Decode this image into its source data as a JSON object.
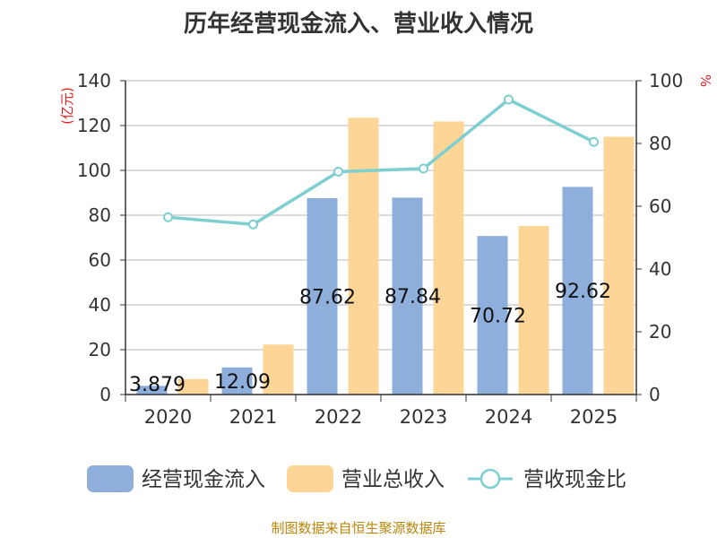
{
  "chart_data": {
    "type": "bar+line",
    "title": "历年经营现金流入、营业收入情况",
    "left_unit": "(亿元)",
    "right_unit": "%",
    "categories": [
      "2020",
      "2021",
      "2022",
      "2023",
      "2024",
      "2025"
    ],
    "left_axis": {
      "ylim": [
        0,
        140
      ],
      "ticks": [
        "0",
        "20",
        "40",
        "60",
        "80",
        "100",
        "120",
        "140"
      ]
    },
    "right_axis": {
      "ylim": [
        0,
        100
      ],
      "ticks": [
        "0",
        "20",
        "40",
        "60",
        "80",
        "100"
      ]
    },
    "series": [
      {
        "name": "经营现金流入",
        "type": "bar",
        "axis": "left",
        "color": "#8eaedc",
        "values": [
          3.879,
          12.09,
          87.62,
          87.84,
          70.72,
          92.62
        ],
        "labels": [
          "3.879",
          "12.09",
          "87.62",
          "87.84",
          "70.72",
          "92.62"
        ]
      },
      {
        "name": "营业总收入",
        "type": "bar",
        "axis": "left",
        "color": "#fdd697",
        "values": [
          6.9,
          22.3,
          123.5,
          121.8,
          75.2,
          115.0
        ]
      },
      {
        "name": "营收现金比",
        "type": "line",
        "axis": "right",
        "color": "#7fcfd0",
        "values": [
          56.5,
          54.2,
          71.0,
          72.0,
          94.0,
          80.5
        ]
      }
    ],
    "legend_position": "bottom",
    "grid": true
  },
  "source_note": "制图数据来自恒生聚源数据库"
}
